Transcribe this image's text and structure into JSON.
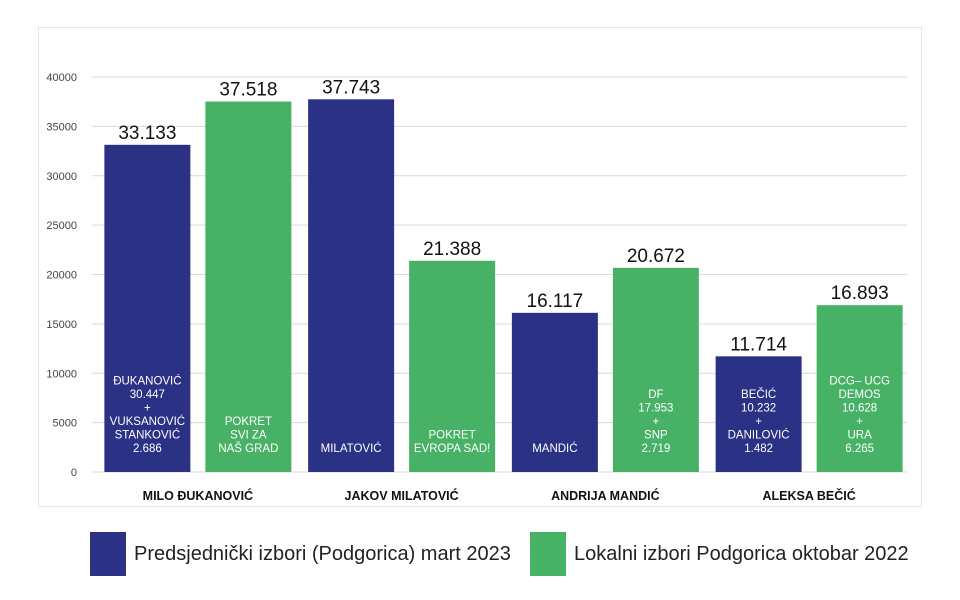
{
  "colors": {
    "pres": "#2b3184",
    "local": "#47b265",
    "grid": "#d9d9d9",
    "axis_text": "#444444"
  },
  "legend": [
    {
      "label": "Predsjednički izbori (Podgorica) mart 2023",
      "color": "#2b3184"
    },
    {
      "label": "Lokalni izbori Podgorica oktobar 2022",
      "color": "#47b265"
    }
  ],
  "chart_data": {
    "type": "bar",
    "ylim": [
      0,
      40000
    ],
    "yticks": [
      "0",
      "5000",
      "10000",
      "15000",
      "20000",
      "25000",
      "30000",
      "35000",
      "40000"
    ],
    "grid": true,
    "legend_position": "bottom",
    "categories": [
      "MILO ĐUKANOVIĆ",
      "JAKOV MILATOVIĆ",
      "ANDRIJA MANDIĆ",
      "ALEKSA BEČIĆ"
    ],
    "series": [
      {
        "name": "Predsjednički izbori (Podgorica) mart 2023",
        "color": "#2b3184",
        "values": [
          33133,
          37743,
          16117,
          11714
        ],
        "value_labels": [
          "33.133",
          "37.743",
          "16.117",
          "11.714"
        ],
        "bar_text": [
          [
            "ĐUKANOVIĆ",
            "30.447",
            "+",
            "VUKSANOVIĆ",
            "STANKOVIĆ",
            "2.686"
          ],
          [
            "MILATOVIĆ"
          ],
          [
            "MANDIĆ"
          ],
          [
            "BEČIĆ",
            "10.232",
            "+",
            "DANILOVIĆ",
            "1.482"
          ]
        ]
      },
      {
        "name": "Lokalni izbori Podgorica oktobar 2022",
        "color": "#47b265",
        "values": [
          37518,
          21388,
          20672,
          16893
        ],
        "value_labels": [
          "37.518",
          "21.388",
          "20.672",
          "16.893"
        ],
        "bar_text": [
          [
            "POKRET",
            "SVI ZA",
            "NAŠ GRAD"
          ],
          [
            "POKRET",
            "EVROPA SAD!"
          ],
          [
            "DF",
            "17.953",
            "+",
            "SNP",
            "2.719"
          ],
          [
            "DCG– UCG",
            "DEMOS",
            "10.628",
            "+",
            "URA",
            "6.265"
          ]
        ]
      }
    ]
  }
}
